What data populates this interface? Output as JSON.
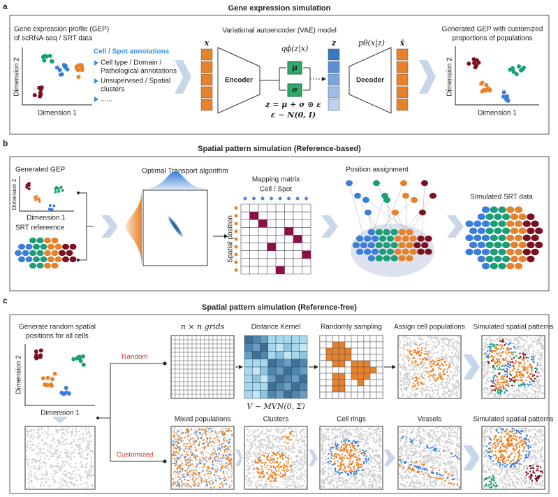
{
  "panel_a": {
    "label": "a",
    "title": "Gene expression simulation",
    "input": {
      "heading": [
        "Gene expression profile (GEP)",
        "of scRNA-seq / SRT data"
      ],
      "y_axis": "Dimension 2",
      "x_axis": "Dimension 1"
    },
    "annotations": {
      "title": "Cell / Spot annotations",
      "items": [
        "Cell type / Domain /",
        "Pathological annotations",
        "Unsupervised / Spatial",
        "clusters",
        "......"
      ]
    },
    "vae": {
      "title": "Variational autoencoder (VAE) model",
      "input_symbol": "x",
      "encoder": "Encoder",
      "posterior": "qϕ(z|x)",
      "mu": "μ",
      "sigma": "σ",
      "reparam": "z = μ + σ ⊙ ε",
      "noise": "ε ∼ N(0, I)",
      "latent_symbol": "z",
      "decoder": "Decoder",
      "likelihood": "pθ(x|z)",
      "output_symbol": "x̃"
    },
    "output": {
      "heading": [
        "Generated GEP with customized",
        "proportions of populations"
      ],
      "y_axis": "Dimension 2",
      "x_axis": "Dimension 1"
    }
  },
  "panel_b": {
    "label": "b",
    "title": "Spatial pattern simulation (Reference-based)",
    "gep": {
      "heading": "Generated GEP",
      "y_axis": "Dimension 2",
      "x_axis": "Dimension 1"
    },
    "reference": "SRT refereence",
    "ot": {
      "title": "Optimal Transport algorithm"
    },
    "matrix": {
      "title": "Mapping matrix",
      "columns": "Cell / Spot",
      "rows": "Spatial position"
    },
    "assignment": "Position assignment",
    "result": "SImulated SRT data"
  },
  "panel_c": {
    "label": "c",
    "title": "Spatial pattern simulation (Reference-free)",
    "input": {
      "heading": [
        "Generate random spatial",
        "positions for all cells"
      ],
      "y_axis": "Dimension 2",
      "x_axis": "Dimension 1"
    },
    "branches": [
      "Random",
      "Customized"
    ],
    "random_steps": [
      "n × n grids",
      "Distance Kernel",
      "Randomly sampling",
      "Assign cell populations",
      "Simulated spatial patterns"
    ],
    "kernel_formula": "V ∼ MVN(0, Σ)",
    "custom_steps": [
      "Mixed populations",
      "Clusters",
      "Cell rings",
      "Vessels",
      "Simulated spatial patterns"
    ]
  }
}
